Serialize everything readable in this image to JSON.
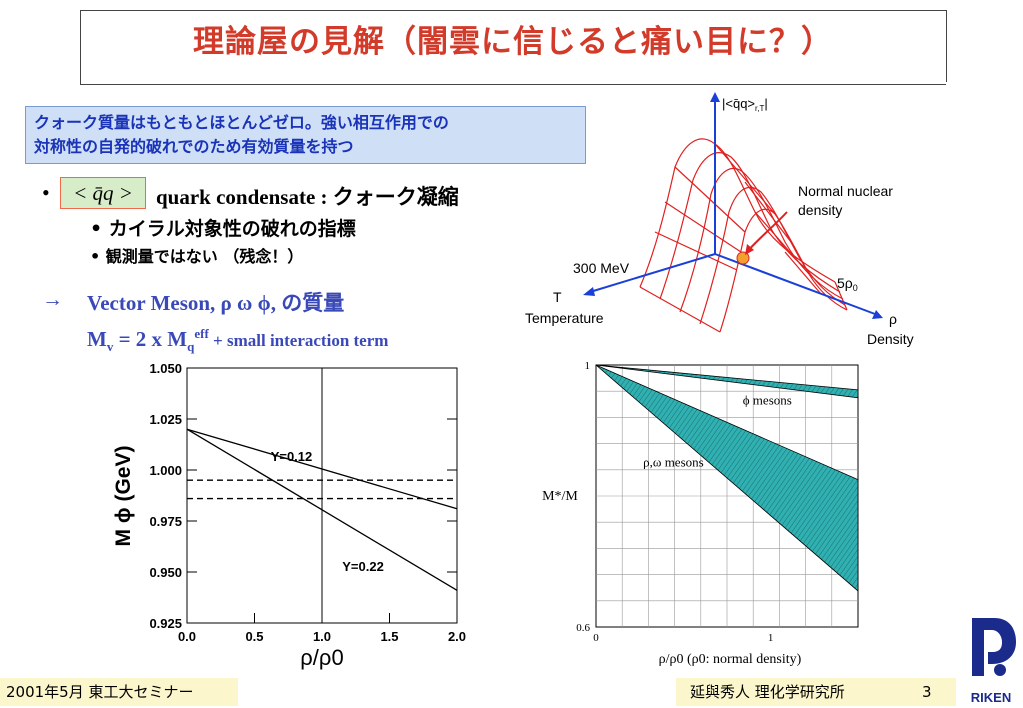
{
  "title": "理論屋の見解（闇雲に信じると痛い目に？）",
  "note": {
    "line1": "クォーク質量はもともとほとんどゼロ。強い相互作用での",
    "line2": "対称性の自発的破れでのため有効質量を持つ"
  },
  "bullets": {
    "bullet_symbol": "•",
    "condensate_symbol": "< q̄q >",
    "condensate_label": "quark condensate : クォーク凝縮",
    "sub1": "• カイラル対象性の破れの指標",
    "sub2": "• 観測量ではない （残念！）",
    "arrow": "→",
    "vector_meson": "Vector Meson, ρ ω ϕ,  の質量",
    "mv_formula": "M",
    "mv_sub": "v",
    "mv_eq": " = 2 x M",
    "mv_sub2": "q",
    "mv_sup": "eff",
    "mv_tail": " + small interaction term"
  },
  "surface_plot": {
    "z_label": "|<q̄q>",
    "z_sub": "r,T",
    "z_end": "|",
    "normal_nuclear": "Normal nuclear",
    "density_word": "density",
    "t_value": "300 MeV",
    "t_axis": "T",
    "t_label": "Temperature",
    "rho_value": "5ρ",
    "rho_sub": "0",
    "rho_axis": "ρ",
    "rho_label": "Density"
  },
  "chart_data": [
    {
      "type": "line",
      "xlabel": "ρ/ρ0",
      "ylabel": "M ϕ (GeV)",
      "ylim": [
        0.925,
        1.05
      ],
      "xlim": [
        0,
        2
      ],
      "y_ticks": [
        "1.050",
        "1.025",
        "1.000",
        "0.975",
        "0.950",
        "0.925"
      ],
      "x_ticks": [
        "0.0",
        "0.5",
        "1.0",
        "1.5",
        "2.0"
      ],
      "series": [
        {
          "name": "Y=0.12",
          "x": [
            0,
            2
          ],
          "y": [
            1.02,
            0.981
          ]
        },
        {
          "name": "Y=0.22",
          "x": [
            0,
            2
          ],
          "y": [
            1.02,
            0.941
          ]
        },
        {
          "x": [
            0,
            2
          ],
          "y": [
            0.995,
            0.995
          ],
          "style": "dashed"
        },
        {
          "x": [
            0,
            2
          ],
          "y": [
            0.986,
            0.986
          ],
          "style": "dashed"
        }
      ],
      "vline_x": 1.0
    },
    {
      "type": "area",
      "xlabel": "ρ/ρ0  (ρ0: normal density)",
      "ylabel": "M*/M",
      "ylim": [
        0.6,
        1.0
      ],
      "xlim": [
        0,
        1.5
      ],
      "y_ticks": [
        "1",
        "0.6"
      ],
      "x_ticks": [
        "0",
        "1"
      ],
      "series": [
        {
          "name": "ϕ mesons",
          "x": [
            0,
            1.5
          ],
          "upper": [
            1.0,
            0.962
          ],
          "lower": [
            1.0,
            0.95
          ]
        },
        {
          "name": "ρ,ω mesons",
          "x": [
            0,
            1.5
          ],
          "upper": [
            1.0,
            0.825
          ],
          "lower": [
            1.0,
            0.655
          ]
        }
      ],
      "fill_color": "#30b0b0"
    }
  ],
  "footer": {
    "left": "2001年5月  東工大セミナー",
    "right": "延與秀人  理化学研究所",
    "page": "3",
    "logo_text": "RIKEN"
  },
  "colors": {
    "title": "#d23a2a",
    "blue_text": "#3a49b8",
    "note_bg": "#cfe0f6",
    "surface_red": "#e02020",
    "axis_blue": "#1a40d8"
  }
}
